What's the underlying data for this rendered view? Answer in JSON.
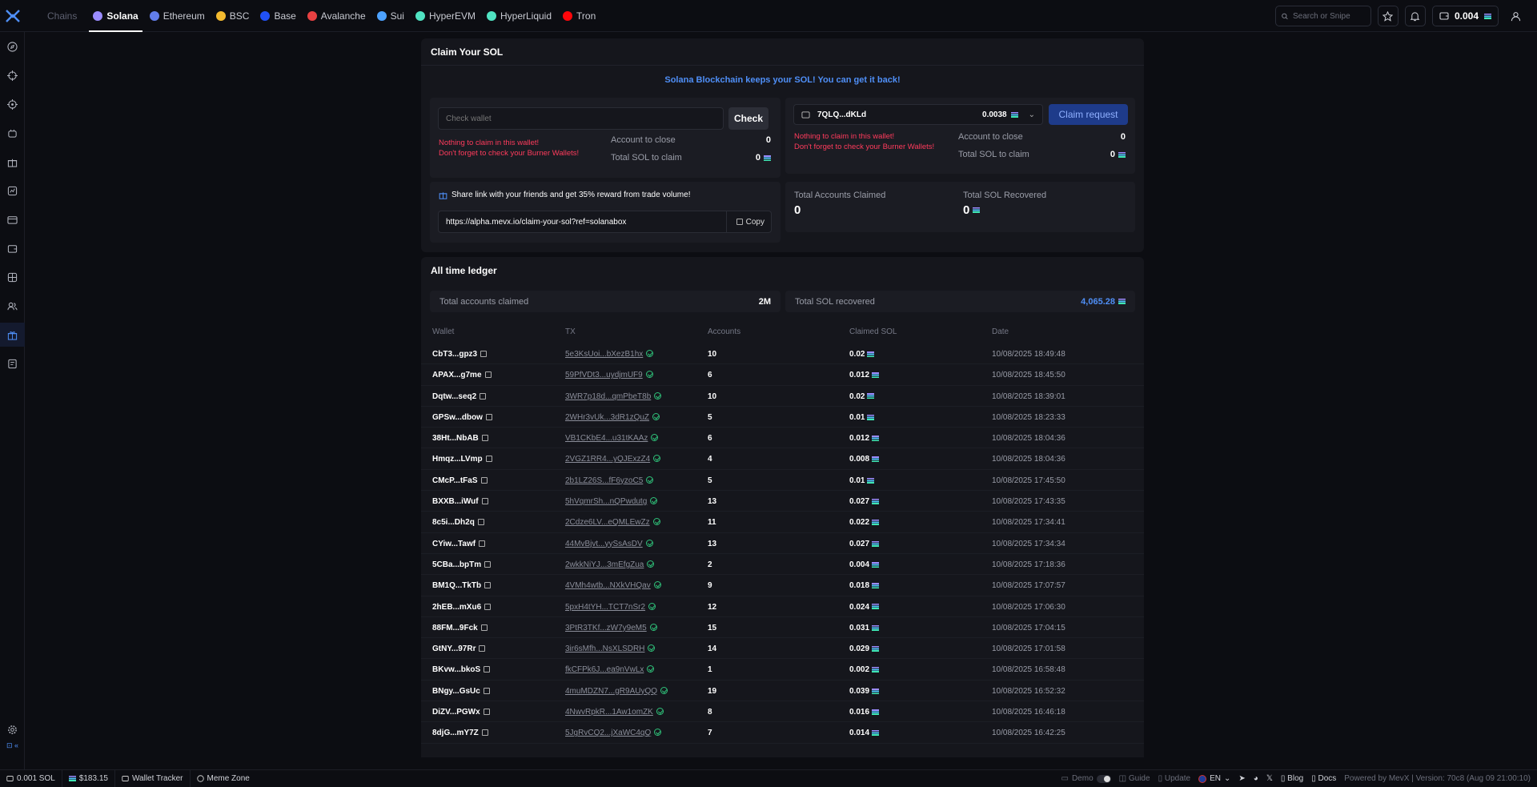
{
  "topbar": {
    "chains_label": "Chains",
    "chains": [
      {
        "name": "Solana",
        "color": "#9b8cff",
        "active": true
      },
      {
        "name": "Ethereum",
        "color": "#627eea"
      },
      {
        "name": "BSC",
        "color": "#f3ba2f"
      },
      {
        "name": "Base",
        "color": "#2151f5"
      },
      {
        "name": "Avalanche",
        "color": "#e84142"
      },
      {
        "name": "Sui",
        "color": "#4da2ff"
      },
      {
        "name": "HyperEVM",
        "color": "#50e3c2"
      },
      {
        "name": "HyperLiquid",
        "color": "#50e3c2"
      },
      {
        "name": "Tron",
        "color": "#ff060a"
      }
    ],
    "search_placeholder": "Search or Snipe",
    "wallet_balance": "0.004"
  },
  "claim": {
    "title": "Claim Your SOL",
    "banner": "Solana Blockchain keeps your SOL! You can get it back!",
    "left": {
      "input_placeholder": "Check wallet",
      "check_label": "Check",
      "warning1": "Nothing to claim in this wallet!",
      "warning2": "Don't forget to check your Burner Wallets!",
      "account_label": "Account to close",
      "account_value": "0",
      "total_label": "Total SOL to claim",
      "total_value": "0"
    },
    "right": {
      "wallet": "7QLQ...dKLd",
      "wallet_balance": "0.0038",
      "claim_label": "Claim request",
      "warning1": "Nothing to claim in this wallet!",
      "warning2": "Don't forget to check your Burner Wallets!",
      "account_label": "Account to close",
      "account_value": "0",
      "total_label": "Total SOL to claim",
      "total_value": "0"
    },
    "share": {
      "text": "Share link with your friends and get 35% reward from trade volume!",
      "link": "https://alpha.mevx.io/claim-your-sol?ref=solanabox",
      "copy_label": "Copy"
    },
    "totals": {
      "accounts_label": "Total Accounts Claimed",
      "accounts_value": "0",
      "sol_label": "Total SOL Recovered",
      "sol_value": "0"
    }
  },
  "ledger": {
    "title": "All time ledger",
    "accounts_label": "Total accounts claimed",
    "accounts_value": "2M",
    "sol_label": "Total SOL recovered",
    "sol_value": "4,065.28",
    "columns": [
      "Wallet",
      "TX",
      "Accounts",
      "Claimed SOL",
      "Date"
    ],
    "rows": [
      [
        "CbT3...gpz3",
        "5e3KsUoi...bXezB1hx",
        "10",
        "0.02",
        "10/08/2025 18:49:48"
      ],
      [
        "APAX...g7me",
        "59PfVDt3...uydjmUF9",
        "6",
        "0.012",
        "10/08/2025 18:45:50"
      ],
      [
        "Dqtw...seq2",
        "3WR7p18d...qmPbeT8b",
        "10",
        "0.02",
        "10/08/2025 18:39:01"
      ],
      [
        "GPSw...dbow",
        "2WHr3vUk...3dR1zQuZ",
        "5",
        "0.01",
        "10/08/2025 18:23:33"
      ],
      [
        "38Ht...NbAB",
        "VB1CKbE4...u31tKAAz",
        "6",
        "0.012",
        "10/08/2025 18:04:36"
      ],
      [
        "Hmqz...LVmp",
        "2VGZ1RR4...yQJExzZ4",
        "4",
        "0.008",
        "10/08/2025 18:04:36"
      ],
      [
        "CMcP...tFaS",
        "2b1LZ26S...fF6yzoC5",
        "5",
        "0.01",
        "10/08/2025 17:45:50"
      ],
      [
        "BXXB...iWuf",
        "5hVqmrSh...nQPwdutg",
        "13",
        "0.027",
        "10/08/2025 17:43:35"
      ],
      [
        "8c5i...Dh2q",
        "2Cdze6LV...eQMLEwZz",
        "11",
        "0.022",
        "10/08/2025 17:34:41"
      ],
      [
        "CYiw...Tawf",
        "44MvBjvt...yySsAsDV",
        "13",
        "0.027",
        "10/08/2025 17:34:34"
      ],
      [
        "5CBa...bpTm",
        "2wkkNiYJ...3mEfgZua",
        "2",
        "0.004",
        "10/08/2025 17:18:36"
      ],
      [
        "BM1Q...TkTb",
        "4VMh4wtb...NXkVHQav",
        "9",
        "0.018",
        "10/08/2025 17:07:57"
      ],
      [
        "2hEB...mXu6",
        "5pxH4tYH...TCT7nSr2",
        "12",
        "0.024",
        "10/08/2025 17:06:30"
      ],
      [
        "88FM...9Fck",
        "3PtR3TKf...zW7y9eM5",
        "15",
        "0.031",
        "10/08/2025 17:04:15"
      ],
      [
        "GtNY...97Rr",
        "3ir6sMfh...NsXLSDRH",
        "14",
        "0.029",
        "10/08/2025 17:01:58"
      ],
      [
        "BKvw...bkoS",
        "fkCFPk6J...ea9nVwLx",
        "1",
        "0.002",
        "10/08/2025 16:58:48"
      ],
      [
        "BNgy...GsUc",
        "4muMDZN7...gR9AUyQQ",
        "19",
        "0.039",
        "10/08/2025 16:52:32"
      ],
      [
        "DiZV...PGWx",
        "4NwvRpkR...1Aw1omZK",
        "8",
        "0.016",
        "10/08/2025 16:46:18"
      ],
      [
        "8djG...mY7Z",
        "5JgRvCQ2...jXaWC4qQ",
        "7",
        "0.014",
        "10/08/2025 16:42:25"
      ]
    ]
  },
  "footer": {
    "sol_balance": "0.001 SOL",
    "sol_price": "$183.15",
    "wallet_tracker": "Wallet Tracker",
    "meme_zone": "Meme Zone",
    "demo": "Demo",
    "guide": "Guide",
    "update": "Update",
    "lang": "EN",
    "blog": "Blog",
    "docs": "Docs",
    "powered": "Powered by MevX | Version: 70c8 (Aug 09 21:00:10)"
  }
}
